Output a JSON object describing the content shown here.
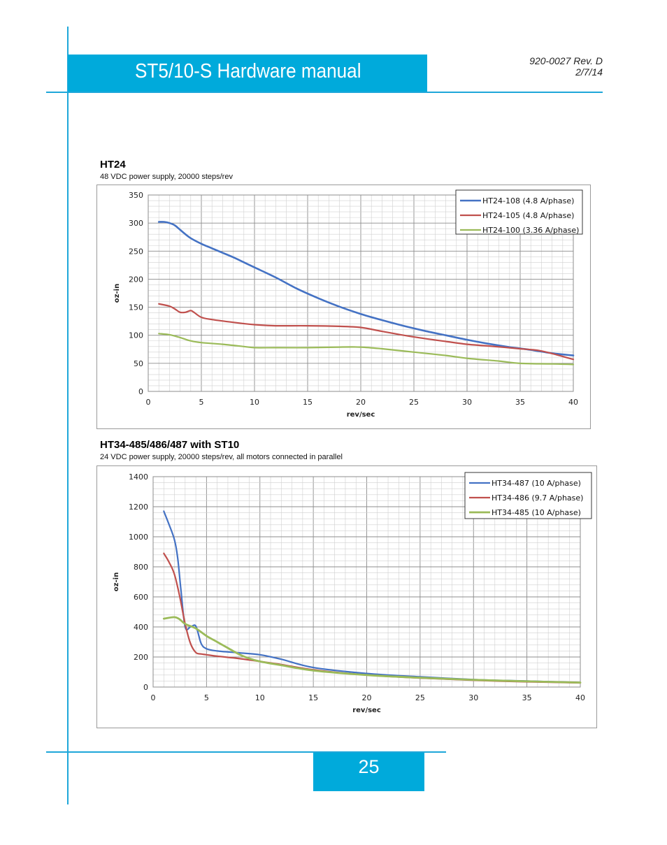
{
  "header": {
    "title": "ST5/10-S Hardware manual",
    "doc_number": "920-0027 Rev. D",
    "date": "2/7/14"
  },
  "footer": {
    "page_number": "25"
  },
  "colors": {
    "accent": "#00aadb",
    "blue": "#4472c4",
    "red": "#c0504d",
    "green": "#9bbb59"
  },
  "chart_data": [
    {
      "type": "line",
      "title": "HT24",
      "subtitle": "48 VDC power supply, 20000 steps/rev",
      "xlabel": "rev/sec",
      "ylabel": "oz-in",
      "xlim": [
        0,
        40
      ],
      "ylim": [
        0,
        350
      ],
      "xticks": [
        0,
        5,
        10,
        15,
        20,
        25,
        30,
        35,
        40
      ],
      "yticks": [
        0,
        50,
        100,
        150,
        200,
        250,
        300,
        350
      ],
      "grid": true,
      "legend": "top-right",
      "series": [
        {
          "name": "HT24-108 (4.8 A/phase)",
          "color": "#4472c4",
          "x": [
            1,
            1.5,
            2,
            2.5,
            3,
            3.5,
            4,
            5,
            6,
            7,
            8,
            9,
            10,
            12,
            14,
            16,
            18,
            20,
            22,
            24,
            26,
            28,
            30,
            32,
            34,
            36,
            38,
            40
          ],
          "y": [
            302,
            302,
            300,
            296,
            288,
            280,
            273,
            263,
            255,
            247,
            239,
            230,
            221,
            203,
            183,
            166,
            151,
            138,
            127,
            117,
            108,
            100,
            92,
            85,
            79,
            74,
            68,
            64
          ]
        },
        {
          "name": "HT24-105 (4.8 A/phase)",
          "color": "#c0504d",
          "x": [
            1,
            2,
            2.5,
            3,
            3.5,
            4,
            4.3,
            5,
            6,
            8,
            10,
            12,
            15,
            18,
            20,
            22,
            25,
            28,
            30,
            32,
            35,
            37,
            40
          ],
          "y": [
            156,
            152,
            147,
            141,
            141,
            144,
            141,
            132,
            128,
            123,
            119,
            117,
            117,
            116,
            114,
            107,
            97,
            89,
            84,
            81,
            76,
            72,
            57
          ]
        },
        {
          "name": "HT24-100 (3.36 A/phase)",
          "color": "#9bbb59",
          "x": [
            1,
            2,
            3,
            4,
            5,
            7,
            9,
            10,
            12,
            15,
            18,
            20,
            22,
            25,
            28,
            30,
            33,
            35,
            38,
            40
          ],
          "y": [
            103,
            101,
            96,
            90,
            87,
            84,
            80,
            78,
            78,
            78,
            79,
            79,
            76,
            70,
            64,
            59,
            54,
            50,
            49,
            48
          ]
        }
      ]
    },
    {
      "type": "line",
      "title": "HT34-485/486/487 with ST10",
      "subtitle": "24 VDC power supply, 20000 steps/rev, all motors connected in parallel",
      "xlabel": "rev/sec",
      "ylabel": "oz-in",
      "xlim": [
        0,
        40
      ],
      "ylim": [
        0,
        1400
      ],
      "xticks": [
        0,
        5,
        10,
        15,
        20,
        25,
        30,
        35,
        40
      ],
      "yticks": [
        0,
        200,
        400,
        600,
        800,
        1000,
        1200,
        1400
      ],
      "grid": true,
      "legend": "top-right",
      "series": [
        {
          "name": "HT34-487 (10 A/phase)",
          "color": "#4472c4",
          "x": [
            1,
            1.5,
            2,
            2.3,
            2.6,
            3,
            3.5,
            4,
            4.5,
            5,
            6,
            8,
            10,
            12,
            15,
            20,
            25,
            30,
            35,
            40
          ],
          "y": [
            1170,
            1080,
            980,
            860,
            650,
            400,
            400,
            405,
            290,
            255,
            240,
            228,
            215,
            185,
            130,
            90,
            68,
            50,
            40,
            30
          ]
        },
        {
          "name": "HT34-486 (9.7 A/phase)",
          "color": "#c0504d",
          "x": [
            1,
            1.5,
            2,
            2.5,
            3,
            3.5,
            4,
            4.5,
            5,
            6,
            8,
            10,
            12,
            15,
            20,
            25,
            30,
            35,
            40
          ],
          "y": [
            890,
            830,
            750,
            600,
            420,
            290,
            230,
            220,
            215,
            205,
            190,
            170,
            150,
            115,
            80,
            60,
            45,
            35,
            28
          ]
        },
        {
          "name": "HT34-485 (10 A/phase)",
          "color": "#9bbb59",
          "x": [
            1,
            2,
            2.5,
            3,
            4,
            5,
            6,
            7,
            8,
            9,
            10,
            12,
            15,
            20,
            25,
            30,
            35,
            40
          ],
          "y": [
            455,
            465,
            450,
            420,
            390,
            340,
            300,
            260,
            220,
            190,
            170,
            145,
            110,
            80,
            62,
            48,
            38,
            30
          ]
        }
      ]
    }
  ]
}
